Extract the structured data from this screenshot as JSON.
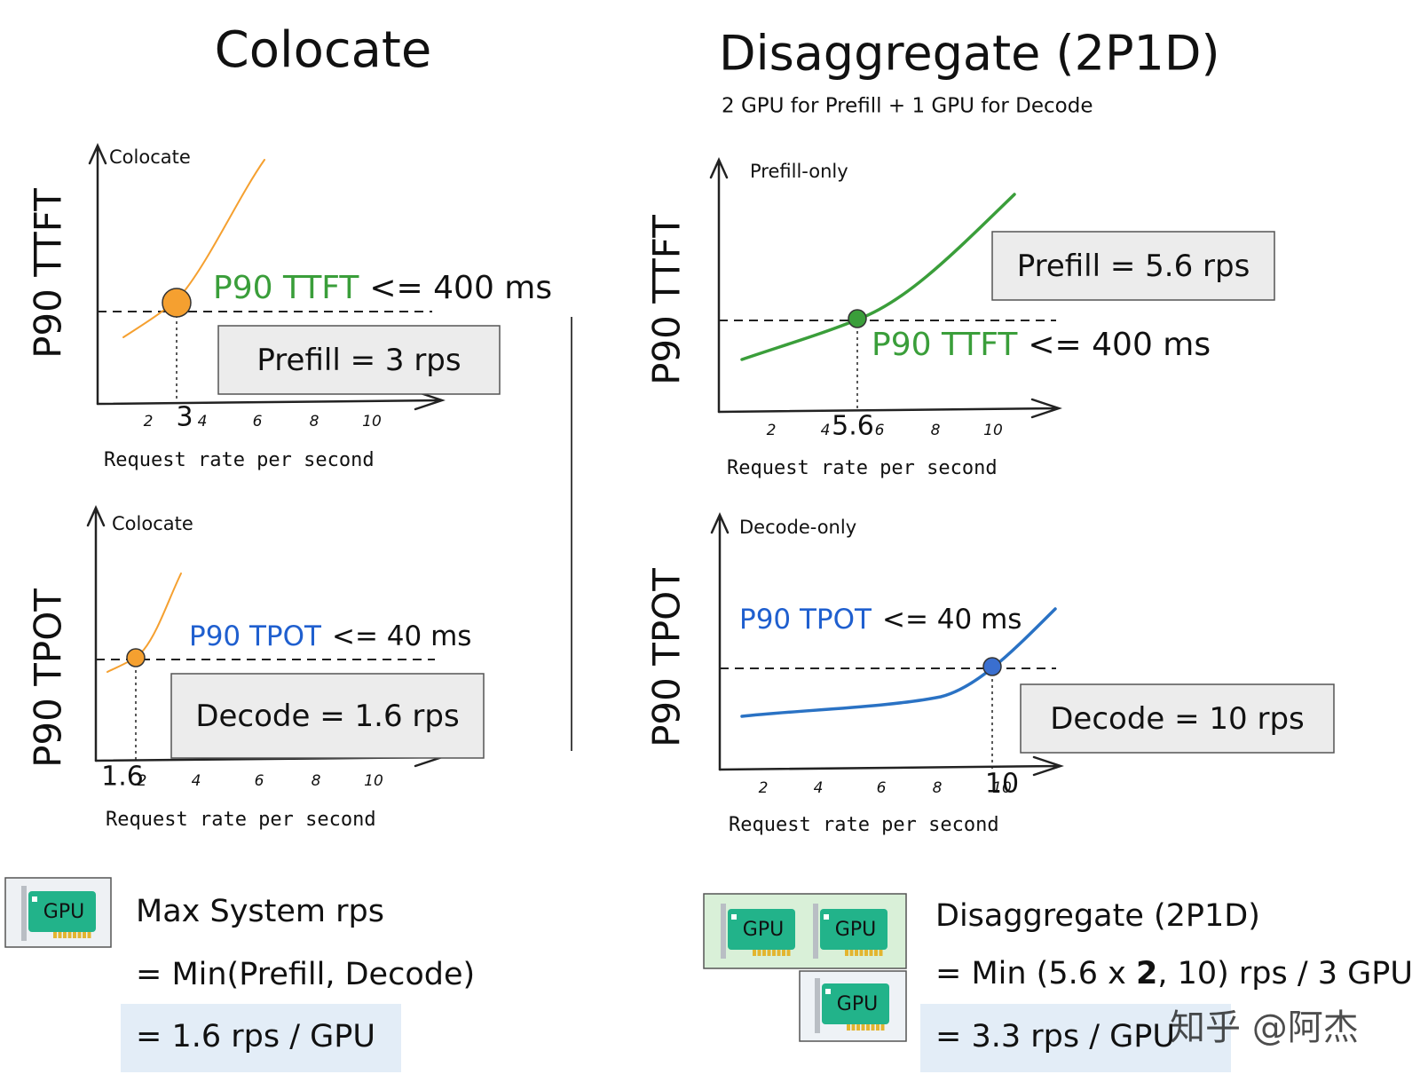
{
  "left": {
    "title": "Colocate",
    "charts": [
      {
        "y_label": "P90 TTFT",
        "series_label": "Colocate",
        "x_ticks": [
          "2",
          "4",
          "6",
          "8",
          "10"
        ],
        "marker_tick": "3",
        "x_label": "Request rate per second",
        "slo_metric": "P90 TTFT",
        "slo_limit": "<= 400 ms",
        "box": "Prefill = 3 rps"
      },
      {
        "y_label": "P90 TPOT",
        "series_label": "Colocate",
        "x_ticks": [
          "2",
          "4",
          "6",
          "8",
          "10"
        ],
        "marker_tick": "1.6",
        "x_label": "Request rate per second",
        "slo_metric": "P90 TPOT",
        "slo_limit": "<= 40 ms",
        "box": "Decode = 1.6 rps"
      }
    ],
    "summary": {
      "gpu": "GPU",
      "lines": [
        "Max System rps",
        "= Min(Prefill, Decode)",
        "= 1.6 rps / GPU"
      ]
    }
  },
  "right": {
    "title": "Disaggregate (2P1D)",
    "subtitle": "2 GPU for Prefill + 1 GPU for Decode",
    "charts": [
      {
        "y_label": "P90 TTFT",
        "series_label": "Prefill-only",
        "x_ticks": [
          "2",
          "4",
          "6",
          "8",
          "10"
        ],
        "marker_tick": "5.6",
        "x_label": "Request rate per second",
        "slo_metric": "P90 TTFT",
        "slo_limit": "<= 400 ms",
        "box": "Prefill = 5.6 rps"
      },
      {
        "y_label": "P90 TPOT",
        "series_label": "Decode-only",
        "x_ticks": [
          "2",
          "4",
          "6",
          "8",
          "10"
        ],
        "marker_tick": "10",
        "x_label": "Request rate per second",
        "slo_metric": "P90 TPOT",
        "slo_limit": "<= 40 ms",
        "box": "Decode = 10 rps"
      }
    ],
    "summary": {
      "gpu": "GPU",
      "line1": "Disaggregate (2P1D)",
      "line2": [
        "= Min (5.6 x ",
        "2",
        ", 10) rps / 3 GPU"
      ],
      "line3": "= 3.3 rps / GPU"
    }
  },
  "watermark": "知乎 @阿杰"
}
